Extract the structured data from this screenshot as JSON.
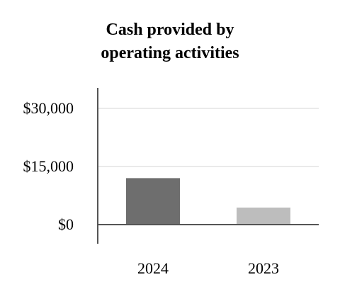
{
  "chart_data": {
    "type": "bar",
    "title_lines": [
      "Cash provided by",
      "operating activities"
    ],
    "categories": [
      "2024",
      "2023"
    ],
    "values": [
      12000,
      4400
    ],
    "ylim": [
      0,
      30000
    ],
    "yticks": [
      0,
      15000,
      30000
    ],
    "ytick_labels": [
      "$0",
      "$15,000",
      "$30,000"
    ],
    "bar_colors": [
      "#6e6e6e",
      "#bdbdbd"
    ],
    "grid": true,
    "legend": "none",
    "xlabel": "",
    "ylabel": ""
  }
}
